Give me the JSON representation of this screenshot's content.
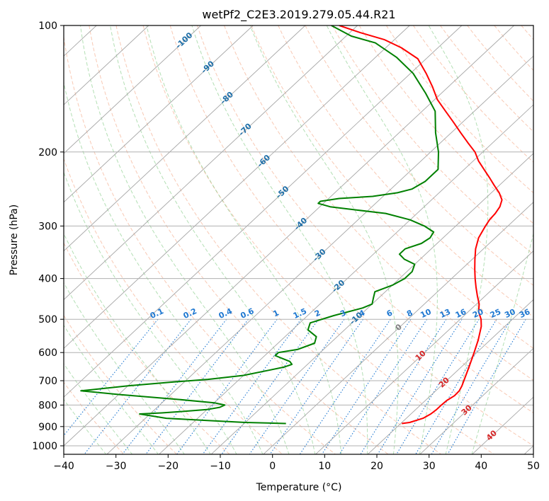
{
  "chart_data": {
    "type": "line",
    "title": "wetPf2_C2E3.2019.279.05.44.R21",
    "xlabel": "Temperature (°C)",
    "ylabel": "Pressure (hPa)",
    "xlim": [
      -40,
      50
    ],
    "ylim": [
      1050,
      100
    ],
    "y_scale": "log",
    "grid": true,
    "x_ticks": [
      "−40",
      "−30",
      "−20",
      "−10",
      "0",
      "10",
      "20",
      "30",
      "40",
      "50"
    ],
    "y_ticks": [
      "100",
      "200",
      "300",
      "400",
      "500",
      "600",
      "700",
      "800",
      "900",
      "1000"
    ],
    "colors": {
      "temperature": "#ff0000",
      "dewpoint": "#008000",
      "dry_adiabat": "#f4a582",
      "moist_adiabat": "#74c476",
      "mixing_ratio": "#1f78d1",
      "isotherm": "#a6a6a6",
      "label_cold": "#1f6fa8",
      "label_zero": "#808080",
      "label_warm": "#d62728"
    },
    "isotherm_labels": [
      "-100",
      "-90",
      "-80",
      "-70",
      "-60",
      "-50",
      "-40",
      "-30",
      "-20",
      "-10",
      "0",
      "10",
      "20",
      "30",
      "40"
    ],
    "mixing_ratio_labels": [
      "0.1",
      "0.2",
      "0.4",
      "0.6",
      "1",
      "1.5",
      "2",
      "3",
      "4",
      "6",
      "8",
      "10",
      "13",
      "16",
      "20",
      "25",
      "30",
      "36"
    ],
    "series": [
      {
        "key": "temperature",
        "points": [
          [
            20.2,
            885
          ],
          [
            21.5,
            880
          ],
          [
            23.2,
            860
          ],
          [
            23.8,
            840
          ],
          [
            24.0,
            820
          ],
          [
            24.0,
            800
          ],
          [
            24.1,
            780
          ],
          [
            24.6,
            760
          ],
          [
            24.5,
            740
          ],
          [
            24.0,
            720
          ],
          [
            23.3,
            700
          ],
          [
            21.5,
            650
          ],
          [
            19.5,
            600
          ],
          [
            17.7,
            560
          ],
          [
            15.5,
            520
          ],
          [
            14.0,
            500
          ],
          [
            12.0,
            480
          ],
          [
            10.5,
            460
          ],
          [
            8.5,
            440
          ],
          [
            6.5,
            420
          ],
          [
            4.5,
            400
          ],
          [
            2.5,
            380
          ],
          [
            0.5,
            360
          ],
          [
            -1.5,
            340
          ],
          [
            -3.2,
            320
          ],
          [
            -4.3,
            300
          ],
          [
            -4.8,
            290
          ],
          [
            -5.0,
            280
          ],
          [
            -5.5,
            270
          ],
          [
            -6.5,
            260
          ],
          [
            -8.5,
            250
          ],
          [
            -11.0,
            240
          ],
          [
            -13.5,
            230
          ],
          [
            -16.2,
            220
          ],
          [
            -19.0,
            210
          ],
          [
            -21.5,
            200
          ],
          [
            -24.8,
            190
          ],
          [
            -28.2,
            180
          ],
          [
            -31.7,
            170
          ],
          [
            -35.5,
            160
          ],
          [
            -39.5,
            150
          ],
          [
            -43.0,
            140
          ],
          [
            -47.0,
            130
          ],
          [
            -51.6,
            120
          ],
          [
            -57.0,
            113
          ],
          [
            -62.0,
            108
          ],
          [
            -68.0,
            104
          ],
          [
            -73.5,
            100
          ]
        ]
      },
      {
        "key": "dewpoint",
        "points": [
          [
            -2,
            885
          ],
          [
            -10,
            880
          ],
          [
            -18,
            870
          ],
          [
            -26,
            860
          ],
          [
            -32,
            840
          ],
          [
            -28,
            835
          ],
          [
            -25,
            830
          ],
          [
            -20,
            820
          ],
          [
            -18,
            810
          ],
          [
            -17.5,
            800
          ],
          [
            -20,
            790
          ],
          [
            -28,
            775
          ],
          [
            -40,
            755
          ],
          [
            -48,
            740
          ],
          [
            -40,
            720
          ],
          [
            -32,
            705
          ],
          [
            -26,
            695
          ],
          [
            -20,
            680
          ],
          [
            -16,
            660
          ],
          [
            -14,
            650
          ],
          [
            -13,
            640
          ],
          [
            -14,
            630
          ],
          [
            -16,
            620
          ],
          [
            -18,
            610
          ],
          [
            -18,
            600
          ],
          [
            -15,
            590
          ],
          [
            -14,
            580
          ],
          [
            -13,
            570
          ],
          [
            -14,
            550
          ],
          [
            -17,
            530
          ],
          [
            -18,
            510
          ],
          [
            -15,
            490
          ],
          [
            -11,
            470
          ],
          [
            -10,
            460
          ],
          [
            -11,
            445
          ],
          [
            -12,
            430
          ],
          [
            -10,
            415
          ],
          [
            -9,
            400
          ],
          [
            -9,
            385
          ],
          [
            -10,
            370
          ],
          [
            -13,
            360
          ],
          [
            -15,
            350
          ],
          [
            -15,
            340
          ],
          [
            -13,
            330
          ],
          [
            -12.5,
            320
          ],
          [
            -13,
            310
          ],
          [
            -16,
            300
          ],
          [
            -20,
            290
          ],
          [
            -26,
            280
          ],
          [
            -32,
            275
          ],
          [
            -38,
            270
          ],
          [
            -41,
            265
          ],
          [
            -41,
            262
          ],
          [
            -38,
            258
          ],
          [
            -32,
            255
          ],
          [
            -28,
            250
          ],
          [
            -26,
            245
          ],
          [
            -25,
            235
          ],
          [
            -25,
            220
          ],
          [
            -28.5,
            200
          ],
          [
            -33,
            180
          ],
          [
            -37.5,
            160
          ],
          [
            -43,
            145
          ],
          [
            -49.5,
            130
          ],
          [
            -56,
            119
          ],
          [
            -63,
            110
          ],
          [
            -69,
            106
          ],
          [
            -75,
            100
          ]
        ]
      }
    ]
  }
}
